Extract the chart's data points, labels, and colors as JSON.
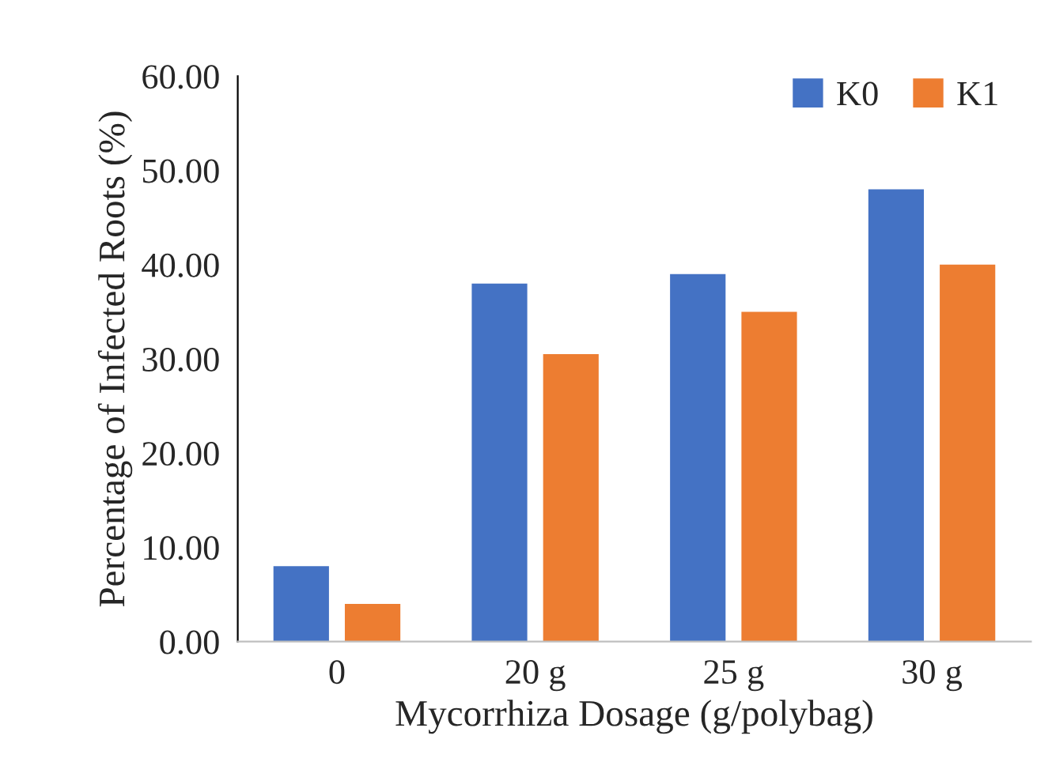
{
  "chart_data": {
    "type": "bar",
    "xlabel": "Mycorrhiza Dosage (g/polybag)",
    "ylabel": "Percentage of Infected Roots (%)",
    "categories": [
      "0",
      "20 g",
      "25 g",
      "30 g"
    ],
    "series": [
      {
        "name": "K0",
        "color": "#4472c4",
        "values": [
          8.0,
          38.0,
          39.0,
          48.0
        ]
      },
      {
        "name": "K1",
        "color": "#ed7d31",
        "values": [
          4.0,
          30.5,
          35.0,
          40.0
        ]
      }
    ],
    "ylim": [
      0,
      60
    ],
    "yticks": [
      {
        "value": 0,
        "label": "0.00"
      },
      {
        "value": 10,
        "label": "10.00"
      },
      {
        "value": 20,
        "label": "20.00"
      },
      {
        "value": 30,
        "label": "30.00"
      },
      {
        "value": 40,
        "label": "40.00"
      },
      {
        "value": 50,
        "label": "50.00"
      },
      {
        "value": 60,
        "label": "60.00"
      }
    ],
    "grid": false,
    "legend": "top right"
  }
}
